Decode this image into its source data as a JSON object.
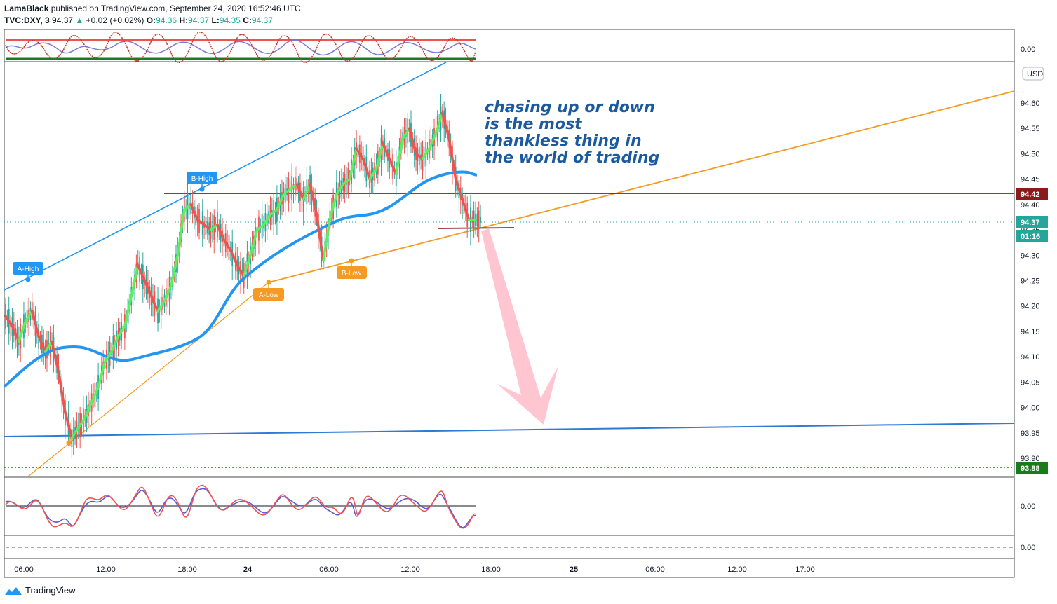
{
  "header": {
    "author": "LamaBlack",
    "published_text": "published on TradingView.com, September 24, 2020 16:52:46 UTC",
    "symbol": "TVC:DXY, 3",
    "price": "94.37",
    "change_arrow": "▲",
    "change": "+0.02 (+0.02%)",
    "o_label": "O:",
    "o_value": "94.36",
    "h_label": "H:",
    "h_value": "94.37",
    "l_label": "L:",
    "l_value": "94.35",
    "c_label": "C:",
    "c_value": "94.37"
  },
  "footer": {
    "brand": "TradingView",
    "logo_icon": "tradingview-logo-icon"
  },
  "colors": {
    "up": "#26a69a",
    "down": "#ef5350",
    "ma_green": "#5bf05b",
    "ma_red": "#ef5350",
    "ema_blue": "#2196f3",
    "trend_blue": "#2e7bd6",
    "support_orange": "#f59a23",
    "resistance_brown": "#8b1a1a",
    "last_price": "#26a69a",
    "level_green": "#1b7a1b",
    "annotation": "#1b5a9e"
  },
  "chart_data": {
    "type": "line",
    "title": "TVC:DXY, 3",
    "currency": "USD",
    "ylim": [
      93.88,
      94.66
    ],
    "y_ticks": [
      "94.60",
      "94.55",
      "94.50",
      "94.45",
      "94.40",
      "94.35",
      "94.30",
      "94.25",
      "94.20",
      "94.15",
      "94.10",
      "94.05",
      "94.00",
      "93.95",
      "93.90"
    ],
    "x_ticks": [
      "06:00",
      "12:00",
      "18:00",
      "24",
      "06:00",
      "12:00",
      "18:00",
      "25",
      "06:00",
      "12:00",
      "17:00"
    ],
    "price_labels": {
      "resistance": "94.42",
      "last_price": "94.37",
      "countdown": "01:16",
      "support": "93.88"
    },
    "pattern_labels": {
      "a_high": "A-High",
      "b_high": "B-High",
      "a_low": "A-Low",
      "b_low": "B-Low"
    },
    "annotation_lines": [
      "chasing up or down",
      "is the most",
      "thankless thing in",
      "the world of trading"
    ],
    "series": [
      {
        "x": [
          "05:00",
          "05:30",
          "06:00",
          "06:30",
          "07:00",
          "07:30",
          "08:00",
          "08:30",
          "09:00",
          "09:30",
          "10:00",
          "10:30",
          "11:00",
          "11:30",
          "12:00",
          "12:30",
          "13:00",
          "13:30",
          "14:00",
          "14:30",
          "15:00",
          "15:30",
          "16:00",
          "16:30",
          "17:00",
          "17:30",
          "18:00",
          "18:30",
          "19:00",
          "19:30",
          "20:00",
          "20:30",
          "21:00",
          "21:30",
          "22:00",
          "22:30",
          "23:00",
          "23:30",
          "00:00",
          "00:30",
          "01:00",
          "01:30",
          "02:00",
          "02:30",
          "03:00",
          "03:30",
          "04:00",
          "04:30",
          "05:00",
          "05:30",
          "06:00",
          "06:30",
          "07:00",
          "07:30",
          "08:00",
          "08:30",
          "09:00",
          "09:30",
          "10:00",
          "10:30",
          "11:00",
          "11:30",
          "12:00",
          "12:30",
          "13:00",
          "13:30",
          "14:00",
          "14:30",
          "15:00",
          "15:30",
          "16:00",
          "16:30"
        ],
        "values": [
          94.18,
          94.16,
          94.13,
          94.17,
          94.19,
          94.14,
          94.11,
          94.13,
          94.07,
          93.99,
          93.94,
          93.96,
          93.98,
          94.01,
          94.04,
          94.09,
          94.11,
          94.14,
          94.16,
          94.22,
          94.28,
          94.25,
          94.22,
          94.19,
          94.21,
          94.24,
          94.3,
          94.39,
          94.4,
          94.37,
          94.36,
          94.35,
          94.36,
          94.33,
          94.31,
          94.28,
          94.26,
          94.3,
          94.35,
          94.36,
          94.38,
          94.39,
          94.42,
          94.43,
          94.44,
          94.41,
          94.44,
          94.38,
          94.29,
          94.37,
          94.42,
          94.44,
          94.45,
          94.51,
          94.49,
          94.45,
          94.47,
          94.52,
          94.49,
          94.46,
          94.53,
          94.55,
          94.5,
          94.49,
          94.51,
          94.54,
          94.58,
          94.53,
          94.45,
          94.41,
          94.37,
          94.37
        ]
      }
    ]
  }
}
